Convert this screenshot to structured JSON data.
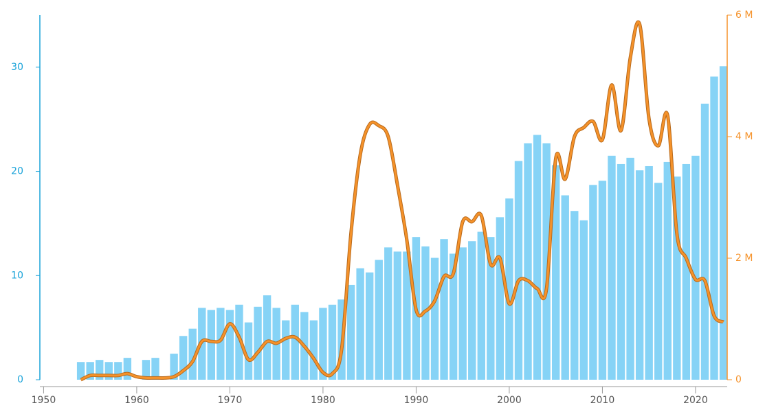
{
  "chart_data": {
    "type": "bar_line",
    "x": [
      1954,
      1955,
      1956,
      1957,
      1958,
      1959,
      1960,
      1961,
      1962,
      1963,
      1964,
      1965,
      1966,
      1967,
      1968,
      1969,
      1970,
      1971,
      1972,
      1973,
      1974,
      1975,
      1976,
      1977,
      1978,
      1979,
      1980,
      1981,
      1982,
      1983,
      1984,
      1985,
      1986,
      1987,
      1988,
      1989,
      1990,
      1991,
      1992,
      1993,
      1994,
      1995,
      1996,
      1997,
      1998,
      1999,
      2000,
      2001,
      2002,
      2003,
      2004,
      2005,
      2006,
      2007,
      2008,
      2009,
      2010,
      2011,
      2012,
      2013,
      2014,
      2015,
      2016,
      2017,
      2018,
      2019,
      2020,
      2021,
      2022,
      2023
    ],
    "series": [
      {
        "type": "bar",
        "color": "#86d3f6",
        "values": [
          1.7,
          1.7,
          1.9,
          1.7,
          1.7,
          2.1,
          null,
          1.9,
          2.1,
          null,
          2.5,
          4.2,
          4.9,
          6.9,
          6.7,
          6.9,
          6.7,
          7.2,
          5.5,
          7.0,
          8.1,
          6.9,
          5.7,
          7.2,
          6.5,
          5.7,
          6.9,
          7.2,
          7.7,
          9.1,
          10.7,
          10.3,
          11.5,
          12.7,
          12.3,
          12.3,
          13.7,
          12.8,
          11.7,
          13.5,
          12.1,
          12.7,
          13.3,
          14.2,
          13.7,
          15.6,
          17.4,
          21.0,
          22.7,
          23.5,
          22.7,
          20.6,
          17.7,
          16.2,
          15.3,
          18.7,
          19.1,
          21.5,
          20.7,
          21.3,
          20.1,
          20.5,
          18.9,
          20.9,
          19.5,
          20.7,
          21.5,
          26.5,
          29.1,
          30.1
        ]
      },
      {
        "type": "line",
        "axis": "y2",
        "color": "#f5922a",
        "values": [
          0,
          70000,
          70000,
          70000,
          70000,
          100000,
          50000,
          30000,
          30000,
          30000,
          50000,
          150000,
          300000,
          630000,
          630000,
          650000,
          920000,
          700000,
          330000,
          450000,
          630000,
          600000,
          680000,
          700000,
          550000,
          350000,
          120000,
          100000,
          500000,
          2400000,
          3700000,
          4200000,
          4180000,
          4000000,
          3200000,
          2300000,
          1150000,
          1130000,
          1300000,
          1700000,
          1750000,
          2600000,
          2600000,
          2700000,
          1900000,
          2000000,
          1250000,
          1630000,
          1630000,
          1500000,
          1500000,
          3650000,
          3300000,
          4000000,
          4150000,
          4250000,
          3950000,
          4850000,
          4100000,
          5300000,
          5850000,
          4300000,
          3850000,
          4350000,
          2400000,
          2000000,
          1650000,
          1630000,
          1050000,
          950000
        ]
      }
    ],
    "xlim": [
      1949.6,
      2023.4
    ],
    "xticks": [
      1950,
      1960,
      1970,
      1980,
      1990,
      2000,
      2010,
      2020
    ],
    "ylim": [
      0,
      35
    ],
    "yticks": [
      0,
      10,
      20,
      30
    ],
    "y2lim": [
      0,
      6000000
    ],
    "y2ticks": [
      0,
      {
        "value": 2000000,
        "label": "2 M"
      },
      {
        "value": 4000000,
        "label": "4 M"
      },
      {
        "value": 6000000,
        "label": "6 M"
      }
    ],
    "ycolor": "#1aa3d9",
    "y2color": "#f5922a"
  }
}
